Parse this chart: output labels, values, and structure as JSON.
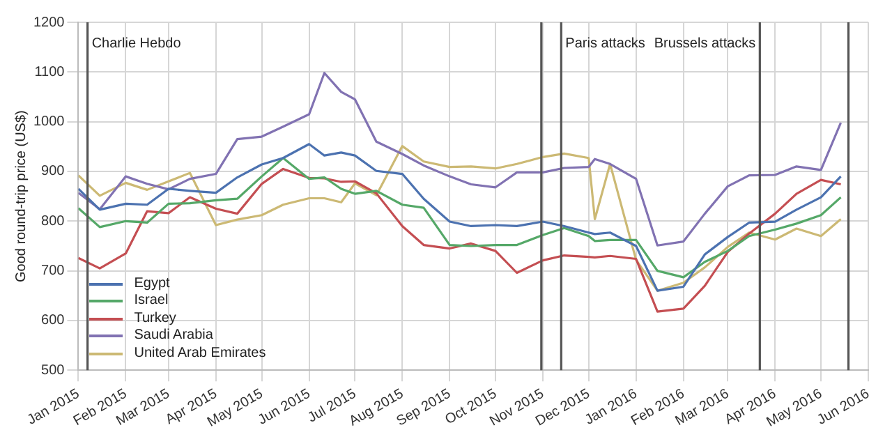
{
  "chart_data": {
    "type": "line",
    "ylabel": "Good round-trip price (US$)",
    "x": [
      "2015-01-01",
      "2015-01-15",
      "2015-02-01",
      "2015-02-15",
      "2015-03-01",
      "2015-03-15",
      "2015-04-01",
      "2015-04-15",
      "2015-05-01",
      "2015-05-15",
      "2015-06-01",
      "2015-06-11",
      "2015-06-22",
      "2015-07-01",
      "2015-07-15",
      "2015-08-01",
      "2015-08-15",
      "2015-09-01",
      "2015-09-15",
      "2015-10-01",
      "2015-10-15",
      "2015-11-01",
      "2015-11-15",
      "2015-12-01",
      "2015-12-05",
      "2015-12-15",
      "2016-01-01",
      "2016-01-15",
      "2016-02-01",
      "2016-02-15",
      "2016-03-01",
      "2016-03-15",
      "2016-04-01",
      "2016-04-15",
      "2016-05-01",
      "2016-05-14"
    ],
    "series": [
      {
        "name": "Egypt",
        "color": "#4c72b0",
        "values": [
          865,
          823,
          835,
          833,
          865,
          861,
          857,
          888,
          914,
          927,
          955,
          932,
          938,
          932,
          901,
          895,
          845,
          799,
          790,
          792,
          790,
          799,
          790,
          777,
          774,
          777,
          750,
          660,
          668,
          733,
          768,
          797,
          799,
          823,
          848,
          890
        ]
      },
      {
        "name": "Israel",
        "color": "#55a868",
        "values": [
          826,
          788,
          800,
          797,
          835,
          836,
          842,
          845,
          890,
          927,
          885,
          888,
          865,
          855,
          861,
          833,
          827,
          752,
          750,
          752,
          752,
          772,
          786,
          770,
          760,
          762,
          762,
          700,
          687,
          718,
          740,
          770,
          783,
          795,
          812,
          848
        ]
      },
      {
        "name": "Turkey",
        "color": "#c44e52",
        "values": [
          726,
          705,
          735,
          820,
          816,
          848,
          825,
          815,
          875,
          905,
          887,
          886,
          879,
          880,
          856,
          790,
          752,
          745,
          755,
          740,
          696,
          721,
          731,
          728,
          727,
          730,
          724,
          618,
          624,
          670,
          738,
          775,
          815,
          855,
          883,
          874
        ]
      },
      {
        "name": "Saudi Arabia",
        "color": "#8172b2",
        "values": [
          857,
          824,
          890,
          875,
          864,
          885,
          895,
          965,
          970,
          990,
          1015,
          1098,
          1060,
          1045,
          960,
          935,
          912,
          890,
          874,
          868,
          898,
          898,
          907,
          909,
          925,
          915,
          885,
          751,
          759,
          815,
          870,
          892,
          893,
          910,
          903,
          998
        ]
      },
      {
        "name": "United Arab Emirates",
        "color": "#ccb974",
        "values": [
          892,
          851,
          877,
          863,
          880,
          897,
          792,
          803,
          812,
          833,
          846,
          846,
          838,
          876,
          852,
          951,
          920,
          909,
          910,
          906,
          915,
          929,
          936,
          927,
          804,
          915,
          722,
          660,
          676,
          707,
          748,
          777,
          763,
          785,
          770,
          804
        ]
      }
    ],
    "xlim": [
      "2015-01-01",
      "2016-06-01"
    ],
    "xticks": [
      {
        "value": "2015-01-01",
        "label": "Jan 2015"
      },
      {
        "value": "2015-02-01",
        "label": "Feb 2015"
      },
      {
        "value": "2015-03-01",
        "label": "Mar 2015"
      },
      {
        "value": "2015-04-01",
        "label": "Apr 2015"
      },
      {
        "value": "2015-05-01",
        "label": "May 2015"
      },
      {
        "value": "2015-06-01",
        "label": "Jun 2015"
      },
      {
        "value": "2015-07-01",
        "label": "Jul 2015"
      },
      {
        "value": "2015-08-01",
        "label": "Aug 2015"
      },
      {
        "value": "2015-09-01",
        "label": "Sep 2015"
      },
      {
        "value": "2015-10-01",
        "label": "Oct 2015"
      },
      {
        "value": "2015-11-01",
        "label": "Nov 2015"
      },
      {
        "value": "2015-12-01",
        "label": "Dec 2015"
      },
      {
        "value": "2016-01-01",
        "label": "Jan 2016"
      },
      {
        "value": "2016-02-01",
        "label": "Feb 2016"
      },
      {
        "value": "2016-03-01",
        "label": "Mar 2016"
      },
      {
        "value": "2016-04-01",
        "label": "Apr 2016"
      },
      {
        "value": "2016-05-01",
        "label": "May 2016"
      },
      {
        "value": "2016-06-01",
        "label": "Jun 2016"
      }
    ],
    "ylim": [
      500,
      1200
    ],
    "yticks": [
      500,
      600,
      700,
      800,
      900,
      1000,
      1100,
      1200
    ],
    "ref_lines": [
      {
        "axis": "x",
        "value": "2015-01-07",
        "label": "Charlie Hebdo",
        "color": "#555555"
      },
      {
        "axis": "x",
        "value": "2015-10-31",
        "color": "#555555"
      },
      {
        "axis": "x",
        "value": "2015-11-13",
        "label": "Paris attacks",
        "color": "#555555"
      },
      {
        "axis": "x",
        "value": "2016-03-22",
        "label": "Brussels attacks",
        "color": "#555555"
      },
      {
        "axis": "x",
        "value": "2016-05-19",
        "color": "#555555"
      }
    ],
    "grid": true,
    "legend": "bottom left",
    "marker": "none",
    "line_style": "solid"
  }
}
